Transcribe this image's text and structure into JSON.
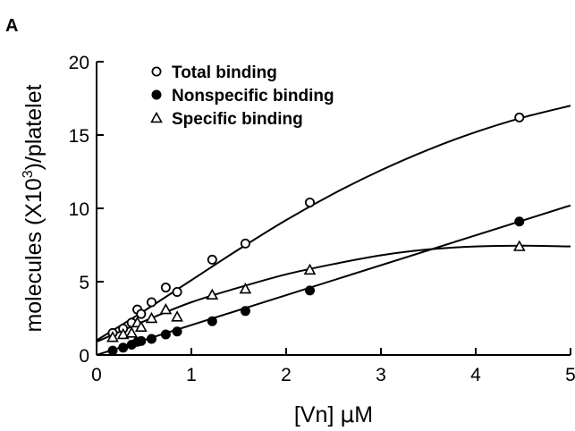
{
  "panel_label": "A",
  "chart_data": {
    "type": "scatter",
    "xlabel_parts": [
      "[Vn] ",
      "μ",
      "M"
    ],
    "ylabel_parts": [
      "molecules (X10",
      "3",
      ")/platelet"
    ],
    "xlim": [
      0,
      5
    ],
    "ylim": [
      0,
      20
    ],
    "x_ticks": [
      0,
      1,
      2,
      3,
      4,
      5
    ],
    "y_ticks": [
      0,
      5,
      10,
      15,
      20
    ],
    "x_tick_labels": [
      "0",
      "1",
      "2",
      "3",
      "4",
      "5"
    ],
    "y_tick_labels": [
      "0",
      "5",
      "10",
      "15",
      "20"
    ],
    "legend_position": "top-left",
    "grid": false,
    "series": [
      {
        "name": "Total binding",
        "marker": "open-circle",
        "x": [
          0.17,
          0.28,
          0.37,
          0.43,
          0.47,
          0.58,
          0.73,
          0.85,
          1.22,
          1.57,
          2.25,
          4.46
        ],
        "y": [
          1.5,
          1.8,
          2.2,
          3.1,
          2.8,
          3.6,
          4.6,
          4.3,
          6.5,
          7.6,
          10.4,
          16.2
        ],
        "fit": [
          [
            0,
            1.0
          ],
          [
            0.5,
            3.0
          ],
          [
            1,
            5.1
          ],
          [
            1.5,
            7.2
          ],
          [
            2,
            9.2
          ],
          [
            2.5,
            11.0
          ],
          [
            3,
            12.6
          ],
          [
            3.5,
            14.0
          ],
          [
            4,
            15.2
          ],
          [
            4.5,
            16.2
          ],
          [
            5,
            17.0
          ]
        ]
      },
      {
        "name": "Nonspecific binding",
        "marker": "filled-circle",
        "x": [
          0.17,
          0.28,
          0.37,
          0.43,
          0.47,
          0.58,
          0.73,
          0.85,
          1.22,
          1.57,
          2.25,
          4.46
        ],
        "y": [
          0.3,
          0.5,
          0.7,
          0.9,
          0.95,
          1.1,
          1.4,
          1.6,
          2.3,
          3.0,
          4.4,
          9.1
        ],
        "fit": [
          [
            0,
            0.0
          ],
          [
            5,
            10.2
          ]
        ]
      },
      {
        "name": "Specific binding",
        "marker": "open-triangle",
        "x": [
          0.17,
          0.28,
          0.37,
          0.43,
          0.47,
          0.58,
          0.73,
          0.85,
          1.22,
          1.57,
          2.25,
          4.46
        ],
        "y": [
          1.2,
          1.4,
          1.5,
          2.2,
          1.9,
          2.5,
          3.1,
          2.6,
          4.1,
          4.5,
          5.8,
          7.4
        ],
        "fit": [
          [
            0,
            0.9
          ],
          [
            0.5,
            2.3
          ],
          [
            1,
            3.6
          ],
          [
            1.5,
            4.6
          ],
          [
            2,
            5.5
          ],
          [
            2.5,
            6.2
          ],
          [
            3,
            6.8
          ],
          [
            3.5,
            7.2
          ],
          [
            4,
            7.4
          ],
          [
            4.5,
            7.45
          ],
          [
            5,
            7.4
          ]
        ]
      }
    ]
  }
}
